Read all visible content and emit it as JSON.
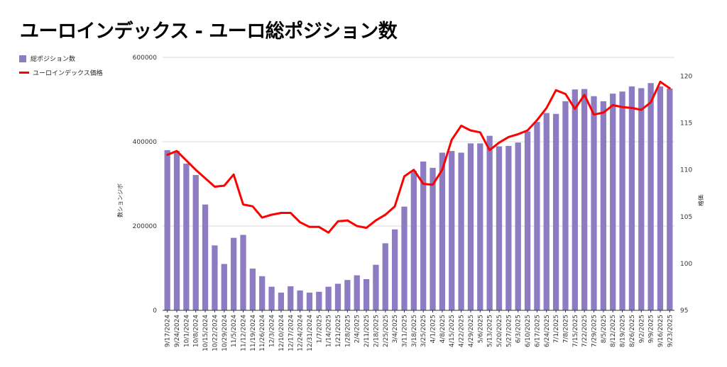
{
  "chart_data": {
    "type": "bar",
    "title": "ユーロインデックス - ユーロ総ポジション数",
    "legend": [
      {
        "name": "総ポジション数",
        "color": "#8e7cc3",
        "kind": "bar"
      },
      {
        "name": "ユーロインデックス価格",
        "color": "#ff0000",
        "kind": "line"
      }
    ],
    "legend_position": "top-left",
    "ylabel": "数ションジボ",
    "y2label": "格価",
    "ylim": [
      0,
      600000
    ],
    "y_ticks": [
      "0",
      "200000",
      "400000",
      "600000"
    ],
    "y2lim": [
      95,
      122
    ],
    "y2_ticks": [
      "95",
      "100",
      "105",
      "110",
      "115",
      "120"
    ],
    "grid": true,
    "categories": [
      "9/17/2024",
      "9/24/2024",
      "10/1/2024",
      "10/8/2024",
      "10/15/2024",
      "10/22/2024",
      "10/29/2024",
      "11/5/2024",
      "11/12/2024",
      "11/19/2024",
      "11/26/2024",
      "12/3/2024",
      "12/10/2024",
      "12/17/2024",
      "12/24/2024",
      "12/31/2024",
      "1/7/2025",
      "1/14/2025",
      "1/21/2025",
      "1/28/2025",
      "2/4/2025",
      "2/11/2025",
      "2/18/2025",
      "2/25/2025",
      "3/4/2025",
      "3/11/2025",
      "3/18/2025",
      "3/25/2025",
      "4/1/2025",
      "4/8/2025",
      "4/15/2025",
      "4/22/2025",
      "4/29/2025",
      "5/6/2025",
      "5/13/2025",
      "5/20/2025",
      "5/27/2025",
      "6/3/2025",
      "6/10/2025",
      "6/17/2025",
      "6/24/2025",
      "7/1/2025",
      "7/8/2025",
      "7/15/2025",
      "7/22/2025",
      "7/29/2025",
      "8/5/2025",
      "8/12/2025",
      "8/19/2025",
      "8/26/2025",
      "9/2/2025",
      "9/9/2025",
      "9/16/2025",
      "9/23/2025"
    ],
    "series": [
      {
        "name": "総ポジション数",
        "type": "bar",
        "axis": "left",
        "values": [
          380000,
          378000,
          348000,
          321000,
          251000,
          154000,
          110000,
          172000,
          179000,
          99000,
          81000,
          56000,
          42000,
          57000,
          47000,
          42000,
          44000,
          56000,
          63000,
          72000,
          83000,
          74000,
          108000,
          159000,
          192000,
          246000,
          331000,
          353000,
          338000,
          374000,
          378000,
          374000,
          396000,
          396000,
          414000,
          389000,
          390000,
          398000,
          424000,
          447000,
          468000,
          466000,
          496000,
          524000,
          525000,
          508000,
          496000,
          514000,
          519000,
          531000,
          527000,
          539000,
          531000,
          526000
        ]
      },
      {
        "name": "ユーロインデックス価格",
        "type": "line",
        "axis": "right",
        "values": [
          111.6,
          112.0,
          111.0,
          110.0,
          109.1,
          108.2,
          108.3,
          109.5,
          106.3,
          106.1,
          104.9,
          105.2,
          105.4,
          105.4,
          104.4,
          103.9,
          103.9,
          103.3,
          104.5,
          104.6,
          104.0,
          103.8,
          104.6,
          105.2,
          106.1,
          109.3,
          110.0,
          108.5,
          108.4,
          110.0,
          113.2,
          114.7,
          114.2,
          114.0,
          112.1,
          112.9,
          113.5,
          113.8,
          114.2,
          115.3,
          116.6,
          118.5,
          118.1,
          116.5,
          118.0,
          115.9,
          116.1,
          116.9,
          116.7,
          116.6,
          116.4,
          117.2,
          119.4,
          118.7
        ]
      }
    ]
  }
}
